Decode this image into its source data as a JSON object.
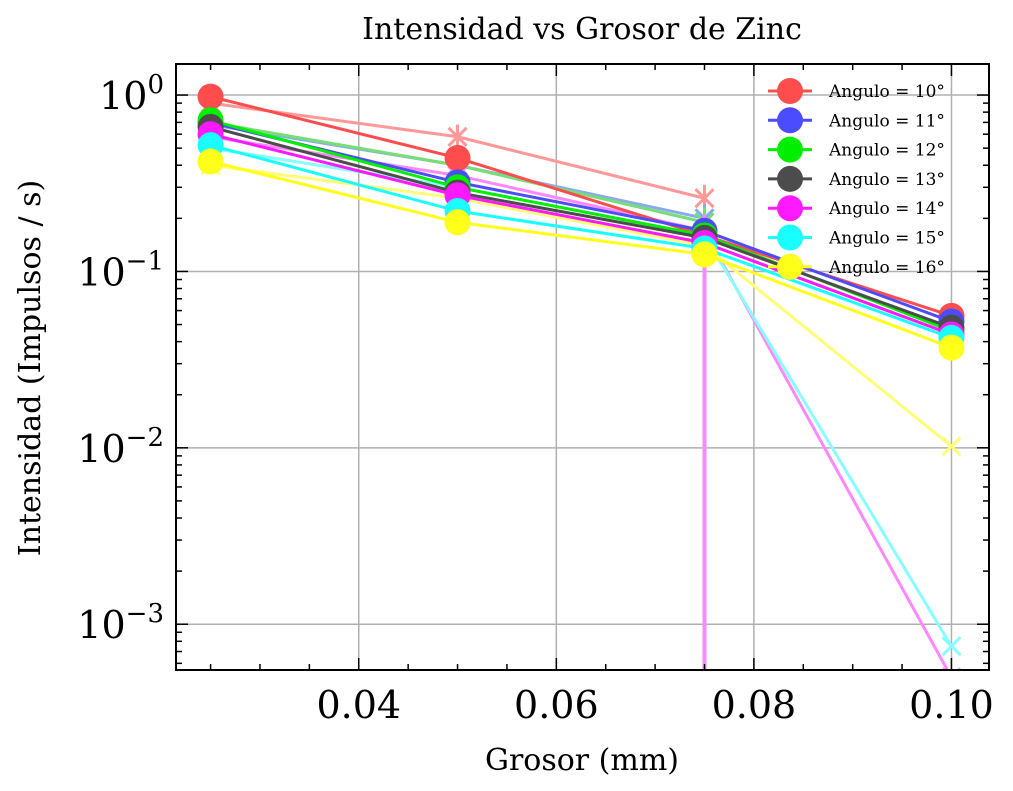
{
  "chart_data": {
    "type": "line",
    "title": "Intensidad vs Grosor de Zinc",
    "xlabel": "Grosor (mm)",
    "ylabel": "Intensidad (Impulsos / s)",
    "xlim": [
      0.0215,
      0.1038
    ],
    "ylim": [
      0.00055,
      1.5
    ],
    "yscale": "log",
    "grid": true,
    "legend_position": "top-right",
    "x_ticks": [
      {
        "value": 0.04,
        "label": "0.04"
      },
      {
        "value": 0.06,
        "label": "0.06"
      },
      {
        "value": 0.08,
        "label": "0.08"
      },
      {
        "value": 0.1,
        "label": "0.10"
      }
    ],
    "y_ticks": [
      {
        "value": 1,
        "base": "10",
        "exp": "0"
      },
      {
        "value": 0.1,
        "base": "10",
        "exp": "−1"
      },
      {
        "value": 0.01,
        "base": "10",
        "exp": "−2"
      },
      {
        "value": 0.001,
        "base": "10",
        "exp": "−3"
      }
    ],
    "x": [
      0.025,
      0.05,
      0.075,
      0.1
    ],
    "series": [
      {
        "name": "Angulo = 10°",
        "color": "#ff4c4c",
        "values": [
          0.98,
          0.44,
          0.16,
          0.056
        ]
      },
      {
        "name": "Angulo = 11°",
        "color": "#4c4cff",
        "values": [
          0.7,
          0.32,
          0.17,
          0.052
        ]
      },
      {
        "name": "Angulo = 12°",
        "color": "#00ee00",
        "values": [
          0.72,
          0.3,
          0.16,
          0.046
        ]
      },
      {
        "name": "Angulo = 13°",
        "color": "#4c4c4c",
        "values": [
          0.66,
          0.28,
          0.155,
          0.048
        ]
      },
      {
        "name": "Angulo = 14°",
        "color": "#ff19ff",
        "values": [
          0.6,
          0.27,
          0.145,
          0.044
        ]
      },
      {
        "name": "Angulo = 15°",
        "color": "#19ffff",
        "values": [
          0.52,
          0.22,
          0.135,
          0.042
        ]
      },
      {
        "name": "Angulo = 16°",
        "color": "#ffff19",
        "values": [
          0.42,
          0.19,
          0.125,
          0.037
        ]
      }
    ],
    "fit_lines": [
      {
        "color": "#ff9898",
        "values": [
          0.9,
          0.58,
          0.26,
          null
        ],
        "err": [
          0.12,
          0.1,
          0.05,
          null
        ]
      },
      {
        "color": "#88aaee",
        "values": [
          0.68,
          0.4,
          0.2,
          null
        ],
        "err": [
          0.08,
          0.06,
          0.04,
          null
        ]
      },
      {
        "color": "#77dd77",
        "values": [
          0.7,
          0.4,
          0.19,
          null
        ],
        "err": [
          0.08,
          0.06,
          0.04,
          null
        ]
      },
      {
        "color": "#ff88ff",
        "values": [
          0.58,
          0.35,
          0.17,
          0.0005
        ],
        "err": [
          0.06,
          0.05,
          0.04,
          null
        ]
      },
      {
        "color": "#88ffff",
        "values": [
          0.5,
          0.3,
          0.16,
          0.00075
        ],
        "err": [
          0.05,
          0.05,
          0.04,
          null
        ]
      },
      {
        "color": "#ffff77",
        "values": [
          0.4,
          0.26,
          0.14,
          0.0102
        ],
        "err": [
          0.04,
          0.04,
          0.03,
          null
        ]
      }
    ]
  }
}
